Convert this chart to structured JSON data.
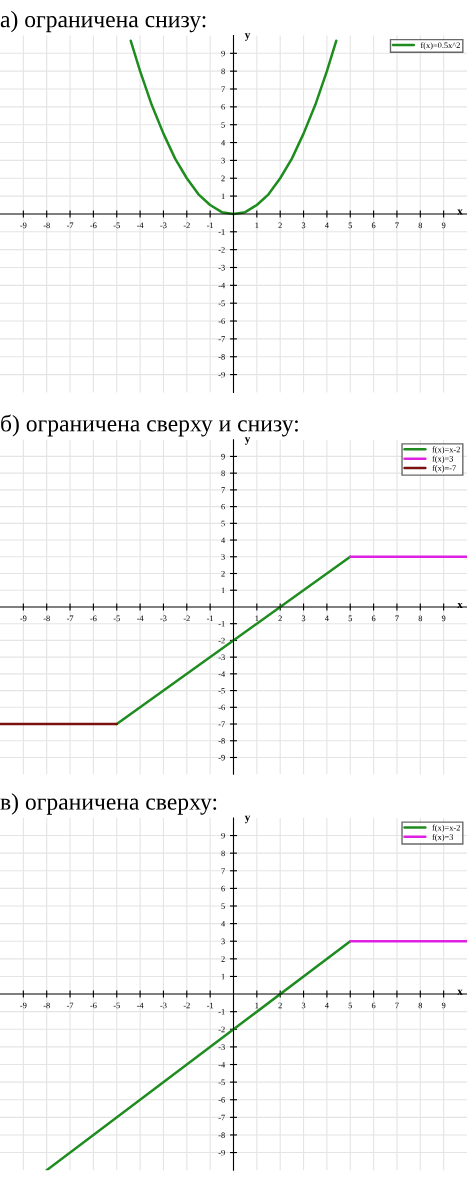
{
  "chart_data": [
    {
      "type": "line",
      "title": "а) ограничена снизу:",
      "xlabel": "x",
      "ylabel": "y",
      "xlim": [
        -10,
        10
      ],
      "ylim": [
        -10,
        10
      ],
      "xticks": [
        -9,
        -8,
        -7,
        -6,
        -5,
        -4,
        -3,
        -2,
        -1,
        1,
        2,
        3,
        4,
        5,
        6,
        7,
        8,
        9
      ],
      "yticks": [
        -9,
        -8,
        -7,
        -6,
        -5,
        -4,
        -3,
        -2,
        -1,
        1,
        2,
        3,
        4,
        5,
        6,
        7,
        8,
        9
      ],
      "grid": true,
      "legend": "top right",
      "series": [
        {
          "name": "f(x)=0.5x^2",
          "color": "#1e8c1e",
          "x": [
            -4.4,
            -4,
            -3.5,
            -3,
            -2.5,
            -2,
            -1.5,
            -1,
            -0.5,
            0,
            0.5,
            1,
            1.5,
            2,
            2.5,
            3,
            3.5,
            4,
            4.4
          ],
          "values": [
            9.7,
            8,
            6.1,
            4.5,
            3.1,
            2,
            1.1,
            0.5,
            0.1,
            0,
            0.1,
            0.5,
            1.1,
            2,
            3.1,
            4.5,
            6.1,
            8,
            9.7
          ]
        }
      ]
    },
    {
      "type": "line",
      "title": "б) ограничена сверху и снизу:",
      "xlabel": "x",
      "ylabel": "y",
      "xlim": [
        -10,
        10
      ],
      "ylim": [
        -10,
        10
      ],
      "xticks": [
        -9,
        -8,
        -7,
        -6,
        -5,
        -4,
        -3,
        -2,
        -1,
        1,
        2,
        3,
        4,
        5,
        6,
        7,
        8,
        9
      ],
      "yticks": [
        -9,
        -8,
        -7,
        -6,
        -5,
        -4,
        -3,
        -2,
        -1,
        1,
        2,
        3,
        4,
        5,
        6,
        7,
        8,
        9
      ],
      "grid": true,
      "legend": "top right",
      "series": [
        {
          "name": "f(x)=x-2",
          "color": "#1e8c1e",
          "x": [
            -5,
            5
          ],
          "values": [
            -7,
            3
          ]
        },
        {
          "name": "f(x)=3",
          "color": "#e020e0",
          "x": [
            5,
            10
          ],
          "values": [
            3,
            3
          ]
        },
        {
          "name": "f(x)=-7",
          "color": "#7a1010",
          "x": [
            -10,
            -5
          ],
          "values": [
            -7,
            -7
          ]
        }
      ]
    },
    {
      "type": "line",
      "title": "в) ограничена сверху:",
      "xlabel": "x",
      "ylabel": "y",
      "xlim": [
        -10,
        10
      ],
      "ylim": [
        -10,
        10
      ],
      "xticks": [
        -9,
        -8,
        -7,
        -6,
        -5,
        -4,
        -3,
        -2,
        -1,
        1,
        2,
        3,
        4,
        5,
        6,
        7,
        8,
        9
      ],
      "yticks": [
        -9,
        -8,
        -7,
        -6,
        -5,
        -4,
        -3,
        -2,
        -1,
        1,
        2,
        3,
        4,
        5,
        6,
        7,
        8,
        9
      ],
      "grid": true,
      "legend": "top right",
      "series": [
        {
          "name": "f(x)=x-2",
          "color": "#1e8c1e",
          "x": [
            -8,
            5
          ],
          "values": [
            -10,
            3
          ]
        },
        {
          "name": "f(x)=3",
          "color": "#e020e0",
          "x": [
            5,
            10
          ],
          "values": [
            3,
            3
          ]
        }
      ]
    }
  ]
}
